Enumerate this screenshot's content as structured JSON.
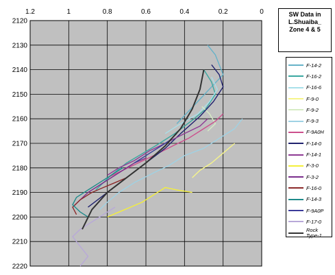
{
  "chart_data": {
    "type": "line",
    "title": "SW Data in L.Shuaiba_ Zone 4 & 5",
    "title_lines": [
      "SW Data in",
      "L.Shuaiba_",
      "Zone 4 & 5"
    ],
    "xlabel": "",
    "ylabel": "",
    "xlim": [
      1.2,
      0
    ],
    "ylim": [
      2120,
      2220
    ],
    "x_ticks": [
      "1.2",
      "1",
      "0.8",
      "0.6",
      "0.4",
      "0.2",
      "0"
    ],
    "x_tick_values": [
      1.2,
      1.0,
      0.8,
      0.6,
      0.4,
      0.2,
      0.0
    ],
    "y_ticks": [
      "2120",
      "2130",
      "2140",
      "2150",
      "2160",
      "2170",
      "2180",
      "2190",
      "2200",
      "2210",
      "2220"
    ],
    "y_tick_values": [
      2120,
      2130,
      2140,
      2150,
      2160,
      2170,
      2180,
      2190,
      2200,
      2210,
      2220
    ],
    "grid": true,
    "legend_position": "right",
    "background": "#c0c0c0",
    "series": [
      {
        "name": "F-14-2",
        "color": "#66b2c8",
        "x": [
          0.28,
          0.24,
          0.22,
          0.2,
          0.26,
          0.32,
          0.38,
          0.44
        ],
        "y": [
          2130,
          2134,
          2138,
          2142,
          2147,
          2152,
          2157,
          2162
        ]
      },
      {
        "name": "F-16-2",
        "color": "#3aa7a0",
        "x": [
          0.3,
          0.26,
          0.24,
          0.29,
          0.35,
          0.45,
          0.55,
          0.7,
          0.78,
          0.86
        ],
        "y": [
          2140,
          2145,
          2150,
          2156,
          2160,
          2166,
          2171,
          2178,
          2183,
          2189
        ]
      },
      {
        "name": "F-16-6",
        "color": "#a8e0ea",
        "x": [
          0.26,
          0.23,
          0.27,
          0.33,
          0.42,
          0.5
        ],
        "y": [
          2143,
          2148,
          2153,
          2158,
          2162,
          2166
        ]
      },
      {
        "name": "F-9-0",
        "color": "#f6f58a",
        "x": [
          0.14,
          0.2,
          0.26,
          0.32,
          0.36
        ],
        "y": [
          2170,
          2174,
          2178,
          2181,
          2184
        ]
      },
      {
        "name": "F-9-2",
        "color": "#d6ecc4",
        "x": [
          0.31,
          0.27,
          0.24,
          0.28
        ],
        "y": [
          2155,
          2158,
          2162,
          2165
        ]
      },
      {
        "name": "F-9-3",
        "color": "#9fd2e4",
        "x": [
          0.1,
          0.14,
          0.22,
          0.3,
          0.4,
          0.48,
          0.56,
          0.66,
          0.74,
          0.8,
          0.84
        ],
        "y": [
          2160,
          2164,
          2168,
          2172,
          2175,
          2179,
          2182,
          2186,
          2190,
          2194,
          2197
        ]
      },
      {
        "name": "F-9A0H",
        "color": "#cc4f8c",
        "x": [
          0.2,
          0.24,
          0.3,
          0.38,
          0.46,
          0.56,
          0.64,
          0.72,
          0.8
        ],
        "y": [
          2158,
          2161,
          2164,
          2168,
          2171,
          2175,
          2178,
          2181,
          2184
        ]
      },
      {
        "name": "F-14-0",
        "color": "#20226e",
        "x": [
          0.26,
          0.22,
          0.2,
          0.25,
          0.32,
          0.42,
          0.5,
          0.6,
          0.7,
          0.8,
          0.9
        ],
        "y": [
          2138,
          2142,
          2147,
          2153,
          2159,
          2166,
          2172,
          2178,
          2184,
          2190,
          2196
        ]
      },
      {
        "name": "F-14-1",
        "color": "#8e3a94",
        "x": [
          0.28,
          0.32,
          0.4,
          0.5,
          0.58,
          0.66,
          0.74,
          0.8
        ],
        "y": [
          2160,
          2163,
          2166,
          2170,
          2173,
          2177,
          2180,
          2183
        ]
      },
      {
        "name": "F-3-0",
        "color": "#f4ef3a",
        "x": [
          0.36,
          0.44,
          0.5,
          0.56,
          0.62,
          0.68,
          0.74,
          0.8
        ],
        "y": [
          2190,
          2189,
          2188,
          2191,
          2194,
          2196,
          2198,
          2200
        ]
      },
      {
        "name": "F-3-2",
        "color": "#7a2e8c",
        "x": [
          0.6,
          0.66,
          0.72,
          0.78,
          0.84,
          0.9,
          0.94,
          0.98
        ],
        "y": [
          2176,
          2178,
          2181,
          2184,
          2187,
          2190,
          2193,
          2196
        ]
      },
      {
        "name": "F-16-0",
        "color": "#8b2a2a",
        "x": [
          0.7,
          0.76,
          0.82,
          0.88,
          0.94,
          0.98,
          0.96
        ],
        "y": [
          2184,
          2186,
          2188,
          2190,
          2193,
          2196,
          2199
        ]
      },
      {
        "name": "F-14-3",
        "color": "#1e8a8a",
        "x": [
          0.72,
          0.78,
          0.84,
          0.9,
          0.96,
          0.98,
          0.94,
          0.9
        ],
        "y": [
          2180,
          2183,
          2186,
          2189,
          2192,
          2195,
          2198,
          2200
        ]
      },
      {
        "name": "F-9A0P",
        "color": "#3b3b9a",
        "x": [
          0.44,
          0.48,
          0.54,
          0.6,
          0.66
        ],
        "y": [
          2166,
          2169,
          2172,
          2175,
          2178
        ]
      },
      {
        "name": "F-17-0",
        "color": "#b8a8d8",
        "x": [
          0.76,
          0.82,
          0.88,
          0.94,
          0.98,
          0.94,
          0.9,
          0.94
        ],
        "y": [
          2196,
          2199,
          2202,
          2205,
          2208,
          2212,
          2216,
          2220
        ]
      },
      {
        "name": "Rock Type-1",
        "color": "#333333",
        "x": [
          0.3,
          0.32,
          0.36,
          0.42,
          0.5,
          0.6,
          0.7,
          0.8,
          0.88,
          0.93
        ],
        "y": [
          2140,
          2148,
          2156,
          2164,
          2171,
          2178,
          2184,
          2190,
          2197,
          2205
        ]
      }
    ]
  },
  "legend": {
    "labels": [
      "F-14-2",
      "F-16-2",
      "F-16-6",
      "F-9-0",
      "F-9-2",
      "F-9-3",
      "F-9A0H",
      "F-14-0",
      "F-14-1",
      "F-3-0",
      "F-3-2",
      "F-16-0",
      "F-14-3",
      "F-9A0P",
      "F-17-0"
    ],
    "rock_lines": [
      "Rock",
      "Type-1"
    ]
  }
}
